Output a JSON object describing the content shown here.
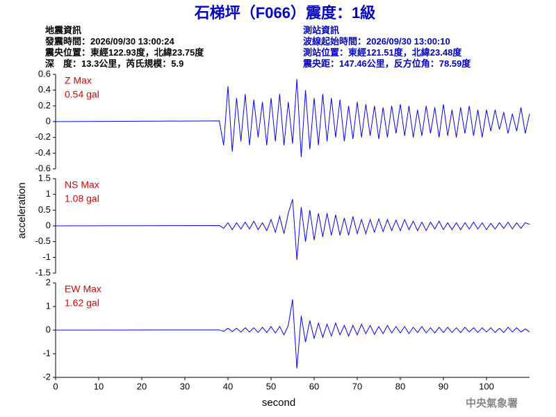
{
  "header": {
    "title": "石梯坪（F066）震度：1級",
    "left": [
      "地震資訊",
      "發震時間：2026/09/30 13:00:24",
      "震央位置：東經122.93度，北緯23.75度",
      "深　度：13.3公里，芮氏規模：5.9"
    ],
    "right": [
      "測站資訊",
      "波線起始時間：2026/09/30 13:00:10",
      "測站位置：東經121.51度，北緯23.48度",
      "震央距：147.46公里，反方位角：78.59度"
    ]
  },
  "footer": "中央氣象署",
  "chart_data": [
    {
      "type": "line",
      "color": "#0000ff",
      "annotation": [
        "Z Max",
        "0.54 gal"
      ],
      "xlim": [
        0,
        110
      ],
      "ylim": [
        -0.6,
        0.6
      ],
      "yticks": [
        -0.6,
        -0.4,
        -0.2,
        0,
        0.2,
        0.4,
        0.6
      ],
      "x": [
        0,
        38,
        39,
        40,
        41,
        42,
        43,
        44,
        45,
        46,
        47,
        48,
        49,
        50,
        51,
        52,
        53,
        54,
        55,
        56,
        57,
        58,
        59,
        60,
        61,
        62,
        63,
        64,
        65,
        66,
        67,
        68,
        69,
        70,
        71,
        72,
        73,
        74,
        75,
        76,
        77,
        78,
        79,
        80,
        81,
        82,
        83,
        84,
        85,
        86,
        87,
        88,
        89,
        90,
        91,
        92,
        93,
        94,
        95,
        96,
        97,
        98,
        99,
        100,
        101,
        102,
        103,
        104,
        105,
        106,
        107,
        108,
        109,
        110
      ],
      "values": [
        0,
        0.01,
        -0.3,
        0.45,
        -0.38,
        0.3,
        -0.25,
        0.35,
        -0.3,
        0.28,
        -0.2,
        0.25,
        -0.3,
        0.3,
        -0.25,
        0.35,
        -0.3,
        0.25,
        -0.28,
        0.54,
        -0.45,
        0.4,
        -0.35,
        0.3,
        -0.3,
        0.35,
        -0.25,
        0.3,
        -0.2,
        0.28,
        -0.25,
        0.2,
        -0.22,
        0.25,
        -0.2,
        0.22,
        -0.18,
        0.2,
        -0.22,
        0.18,
        -0.2,
        0.2,
        -0.15,
        0.22,
        -0.18,
        0.2,
        -0.2,
        0.15,
        -0.18,
        0.2,
        -0.15,
        0.18,
        -0.2,
        0.22,
        -0.18,
        0.15,
        -0.2,
        0.18,
        -0.15,
        0.2,
        -0.18,
        0.15,
        -0.2,
        0.15,
        -0.12,
        0.15,
        -0.1,
        0.12,
        -0.15,
        0.1,
        -0.12,
        0.18,
        -0.15,
        0.1
      ]
    },
    {
      "type": "line",
      "color": "#0000ff",
      "annotation": [
        "NS Max",
        "1.08 gal"
      ],
      "ylabel": "acceleration",
      "xlim": [
        0,
        110
      ],
      "ylim": [
        -1.5,
        1.5
      ],
      "yticks": [
        -1.5,
        -1,
        -0.5,
        0,
        0.5,
        1,
        1.5
      ],
      "x": [
        0,
        38,
        39,
        40,
        41,
        42,
        43,
        44,
        45,
        46,
        47,
        48,
        49,
        50,
        51,
        52,
        53,
        54,
        55,
        56,
        57,
        58,
        59,
        60,
        61,
        62,
        63,
        64,
        65,
        66,
        67,
        68,
        69,
        70,
        71,
        72,
        73,
        74,
        75,
        76,
        77,
        78,
        79,
        80,
        81,
        82,
        83,
        84,
        85,
        86,
        87,
        88,
        89,
        90,
        91,
        92,
        93,
        94,
        95,
        96,
        97,
        98,
        99,
        100,
        101,
        102,
        103,
        104,
        105,
        106,
        107,
        108,
        109,
        110
      ],
      "values": [
        0,
        0.01,
        -0.08,
        0.1,
        -0.12,
        0.1,
        -0.1,
        0.12,
        -0.1,
        0.15,
        -0.12,
        0.1,
        -0.15,
        0.2,
        -0.2,
        0.3,
        -0.25,
        0.4,
        0.85,
        -1.08,
        0.6,
        -0.5,
        0.5,
        -0.45,
        0.4,
        -0.35,
        0.4,
        -0.3,
        0.35,
        -0.3,
        0.25,
        -0.3,
        0.3,
        -0.25,
        0.2,
        -0.25,
        0.2,
        -0.2,
        0.22,
        -0.18,
        0.2,
        -0.15,
        0.18,
        -0.15,
        0.2,
        -0.12,
        0.15,
        -0.15,
        0.12,
        -0.15,
        0.12,
        -0.1,
        0.15,
        -0.12,
        0.1,
        -0.12,
        0.1,
        -0.12,
        0.1,
        -0.1,
        0.12,
        -0.1,
        0.1,
        -0.12,
        0.08,
        -0.1,
        0.1,
        -0.08,
        0.12,
        -0.1,
        0.1,
        -0.08,
        0.1,
        0.05
      ]
    },
    {
      "type": "line",
      "color": "#0000ff",
      "annotation": [
        "EW Max",
        "1.62 gal"
      ],
      "xlabel": "second",
      "xlim": [
        0,
        110
      ],
      "xticks": [
        0,
        10,
        20,
        30,
        40,
        50,
        60,
        70,
        80,
        90,
        100
      ],
      "ylim": [
        -2,
        2
      ],
      "yticks": [
        -2,
        -1,
        0,
        1,
        2
      ],
      "x": [
        0,
        38,
        39,
        40,
        41,
        42,
        43,
        44,
        45,
        46,
        47,
        48,
        49,
        50,
        51,
        52,
        53,
        54,
        55,
        56,
        57,
        58,
        59,
        60,
        61,
        62,
        63,
        64,
        65,
        66,
        67,
        68,
        69,
        70,
        71,
        72,
        73,
        74,
        75,
        76,
        77,
        78,
        79,
        80,
        81,
        82,
        83,
        84,
        85,
        86,
        87,
        88,
        89,
        90,
        91,
        92,
        93,
        94,
        95,
        96,
        97,
        98,
        99,
        100,
        101,
        102,
        103,
        104,
        105,
        106,
        107,
        108,
        109,
        110
      ],
      "values": [
        0,
        0.01,
        -0.05,
        0.08,
        -0.06,
        0.08,
        -0.08,
        0.1,
        -0.08,
        0.1,
        -0.1,
        0.12,
        -0.1,
        0.15,
        -0.12,
        0.15,
        -0.2,
        0.2,
        1.3,
        -1.62,
        0.6,
        -0.5,
        0.4,
        -0.35,
        0.3,
        -0.3,
        0.25,
        -0.25,
        0.3,
        -0.2,
        0.2,
        -0.25,
        0.2,
        -0.2,
        0.25,
        -0.15,
        0.2,
        -0.18,
        0.15,
        -0.15,
        0.2,
        -0.12,
        0.15,
        -0.12,
        0.15,
        -0.15,
        0.12,
        -0.1,
        0.15,
        -0.12,
        0.1,
        -0.12,
        0.12,
        -0.1,
        0.12,
        -0.1,
        0.1,
        -0.1,
        0.12,
        -0.08,
        0.1,
        -0.1,
        0.1,
        -0.08,
        0.1,
        -0.1,
        0.08,
        -0.1,
        0.12,
        -0.08,
        0.1,
        -0.08,
        0.05,
        -0.08
      ]
    }
  ]
}
